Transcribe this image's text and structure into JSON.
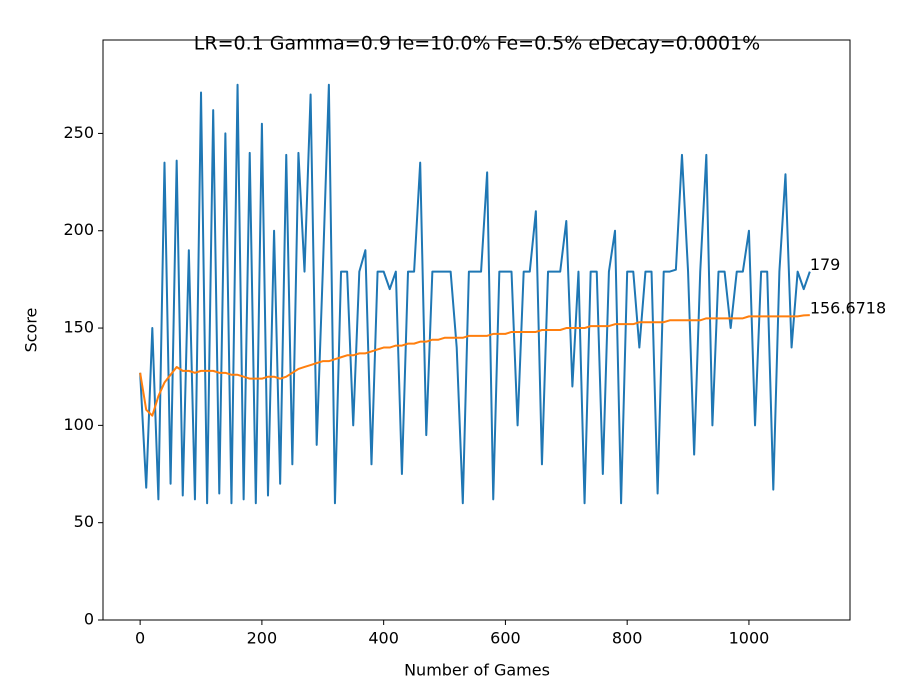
{
  "chart_data": {
    "type": "line",
    "title": "LR=0.1 Gamma=0.9 Ie=10.0% Fe=0.5% eDecay=0.0001%",
    "x_label": "Number of Games",
    "y_label": "Score",
    "x": [
      0,
      10,
      20,
      30,
      40,
      50,
      60,
      70,
      80,
      90,
      100,
      110,
      120,
      130,
      140,
      150,
      160,
      170,
      180,
      190,
      200,
      210,
      220,
      230,
      240,
      250,
      260,
      270,
      280,
      290,
      300,
      310,
      320,
      330,
      340,
      350,
      360,
      370,
      380,
      390,
      400,
      410,
      420,
      430,
      440,
      450,
      460,
      470,
      480,
      490,
      500,
      510,
      520,
      530,
      540,
      550,
      560,
      570,
      580,
      590,
      600,
      610,
      620,
      630,
      640,
      650,
      660,
      670,
      680,
      690,
      700,
      710,
      720,
      730,
      740,
      750,
      760,
      770,
      780,
      790,
      800,
      810,
      820,
      830,
      840,
      850,
      860,
      870,
      880,
      890,
      900,
      910,
      920,
      930,
      940,
      950,
      960,
      970,
      980,
      990,
      1000,
      1010,
      1020,
      1030,
      1040,
      1050,
      1060,
      1070,
      1080,
      1090,
      1100
    ],
    "series": [
      {
        "color": "#1f77b4",
        "values": [
          127,
          68,
          150,
          62,
          235,
          70,
          236,
          64,
          190,
          62,
          271,
          60,
          262,
          65,
          250,
          60,
          275,
          62,
          240,
          60,
          255,
          64,
          200,
          70,
          239,
          80,
          240,
          179,
          270,
          90,
          179,
          275,
          60,
          179,
          179,
          100,
          179,
          190,
          80,
          179,
          179,
          170,
          179,
          75,
          179,
          179,
          235,
          95,
          179,
          179,
          179,
          179,
          140,
          60,
          179,
          179,
          179,
          230,
          62,
          179,
          179,
          179,
          100,
          179,
          179,
          210,
          80,
          179,
          179,
          179,
          205,
          120,
          179,
          60,
          179,
          179,
          75,
          179,
          200,
          60,
          179,
          179,
          140,
          179,
          179,
          65,
          179,
          179,
          180,
          239,
          179,
          85,
          179,
          239,
          100,
          179,
          179,
          150,
          179,
          179,
          200,
          100,
          179,
          179,
          67,
          179,
          229,
          140,
          179,
          170,
          179
        ]
      },
      {
        "color": "#ff7f0e",
        "values": [
          127,
          108,
          105,
          115,
          122,
          126,
          130,
          128,
          128,
          127,
          128,
          128,
          128,
          127,
          127,
          126,
          126,
          125,
          124,
          124,
          124,
          125,
          125,
          124,
          125,
          127,
          129,
          130,
          131,
          132,
          133,
          133,
          134,
          135,
          136,
          136,
          137,
          137,
          138,
          139,
          140,
          140,
          141,
          141,
          142,
          142,
          143,
          143,
          144,
          144,
          145,
          145,
          145,
          145,
          146,
          146,
          146,
          146,
          147,
          147,
          147,
          148,
          148,
          148,
          148,
          148,
          149,
          149,
          149,
          149,
          150,
          150,
          150,
          150,
          151,
          151,
          151,
          151,
          152,
          152,
          152,
          152,
          153,
          153,
          153,
          153,
          153,
          154,
          154,
          154,
          154,
          154,
          154,
          155,
          155,
          155,
          155,
          155,
          155,
          155,
          156,
          156,
          156,
          156,
          156,
          156,
          156,
          156,
          156,
          156.5,
          156.6718
        ]
      }
    ],
    "annotations": [
      {
        "text": "179",
        "xy": [
          1100,
          179
        ]
      },
      {
        "text": "156.6718",
        "xy": [
          1100,
          156.6718
        ]
      }
    ],
    "xlim": [
      -61,
      1166
    ],
    "ylim": [
      0,
      298
    ],
    "xticks": [
      0,
      200,
      400,
      600,
      800,
      1000
    ],
    "yticks": [
      0,
      50,
      100,
      150,
      200,
      250
    ]
  }
}
